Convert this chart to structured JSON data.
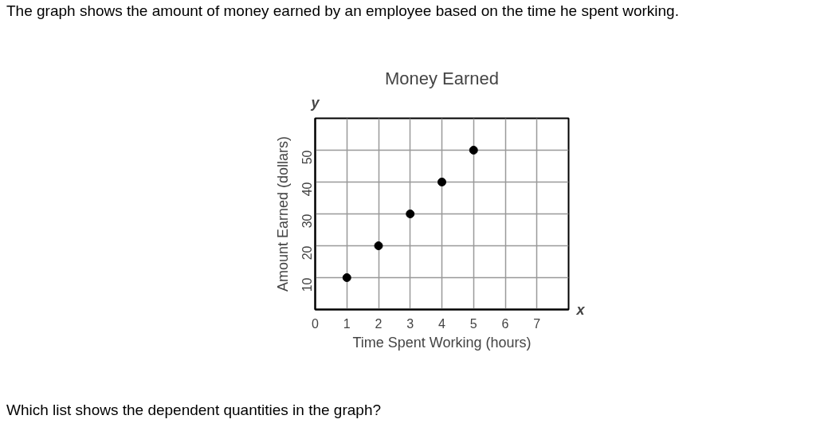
{
  "chart_data": {
    "type": "scatter",
    "title": "Money Earned",
    "subtitle": "The graph shows the amount of money earned by an employee based on the time he spent working.",
    "xlabel": "Time Spent Working (hours)",
    "ylabel": "Amount Earned (dollars)",
    "annotations": [
      "Which list shows the dependent quantities in the graph?",
      "x",
      "y"
    ],
    "x": [
      1,
      2,
      3,
      4,
      5
    ],
    "values": [
      10,
      20,
      30,
      40,
      50
    ],
    "color": "#000000",
    "marker": "circle",
    "xlim": [
      0,
      8
    ],
    "ylim": [
      0,
      60
    ],
    "xticks": [
      0,
      1,
      2,
      3,
      4,
      5,
      6,
      7
    ],
    "yticks": [
      10,
      20,
      30,
      40,
      50
    ],
    "grid": true
  }
}
